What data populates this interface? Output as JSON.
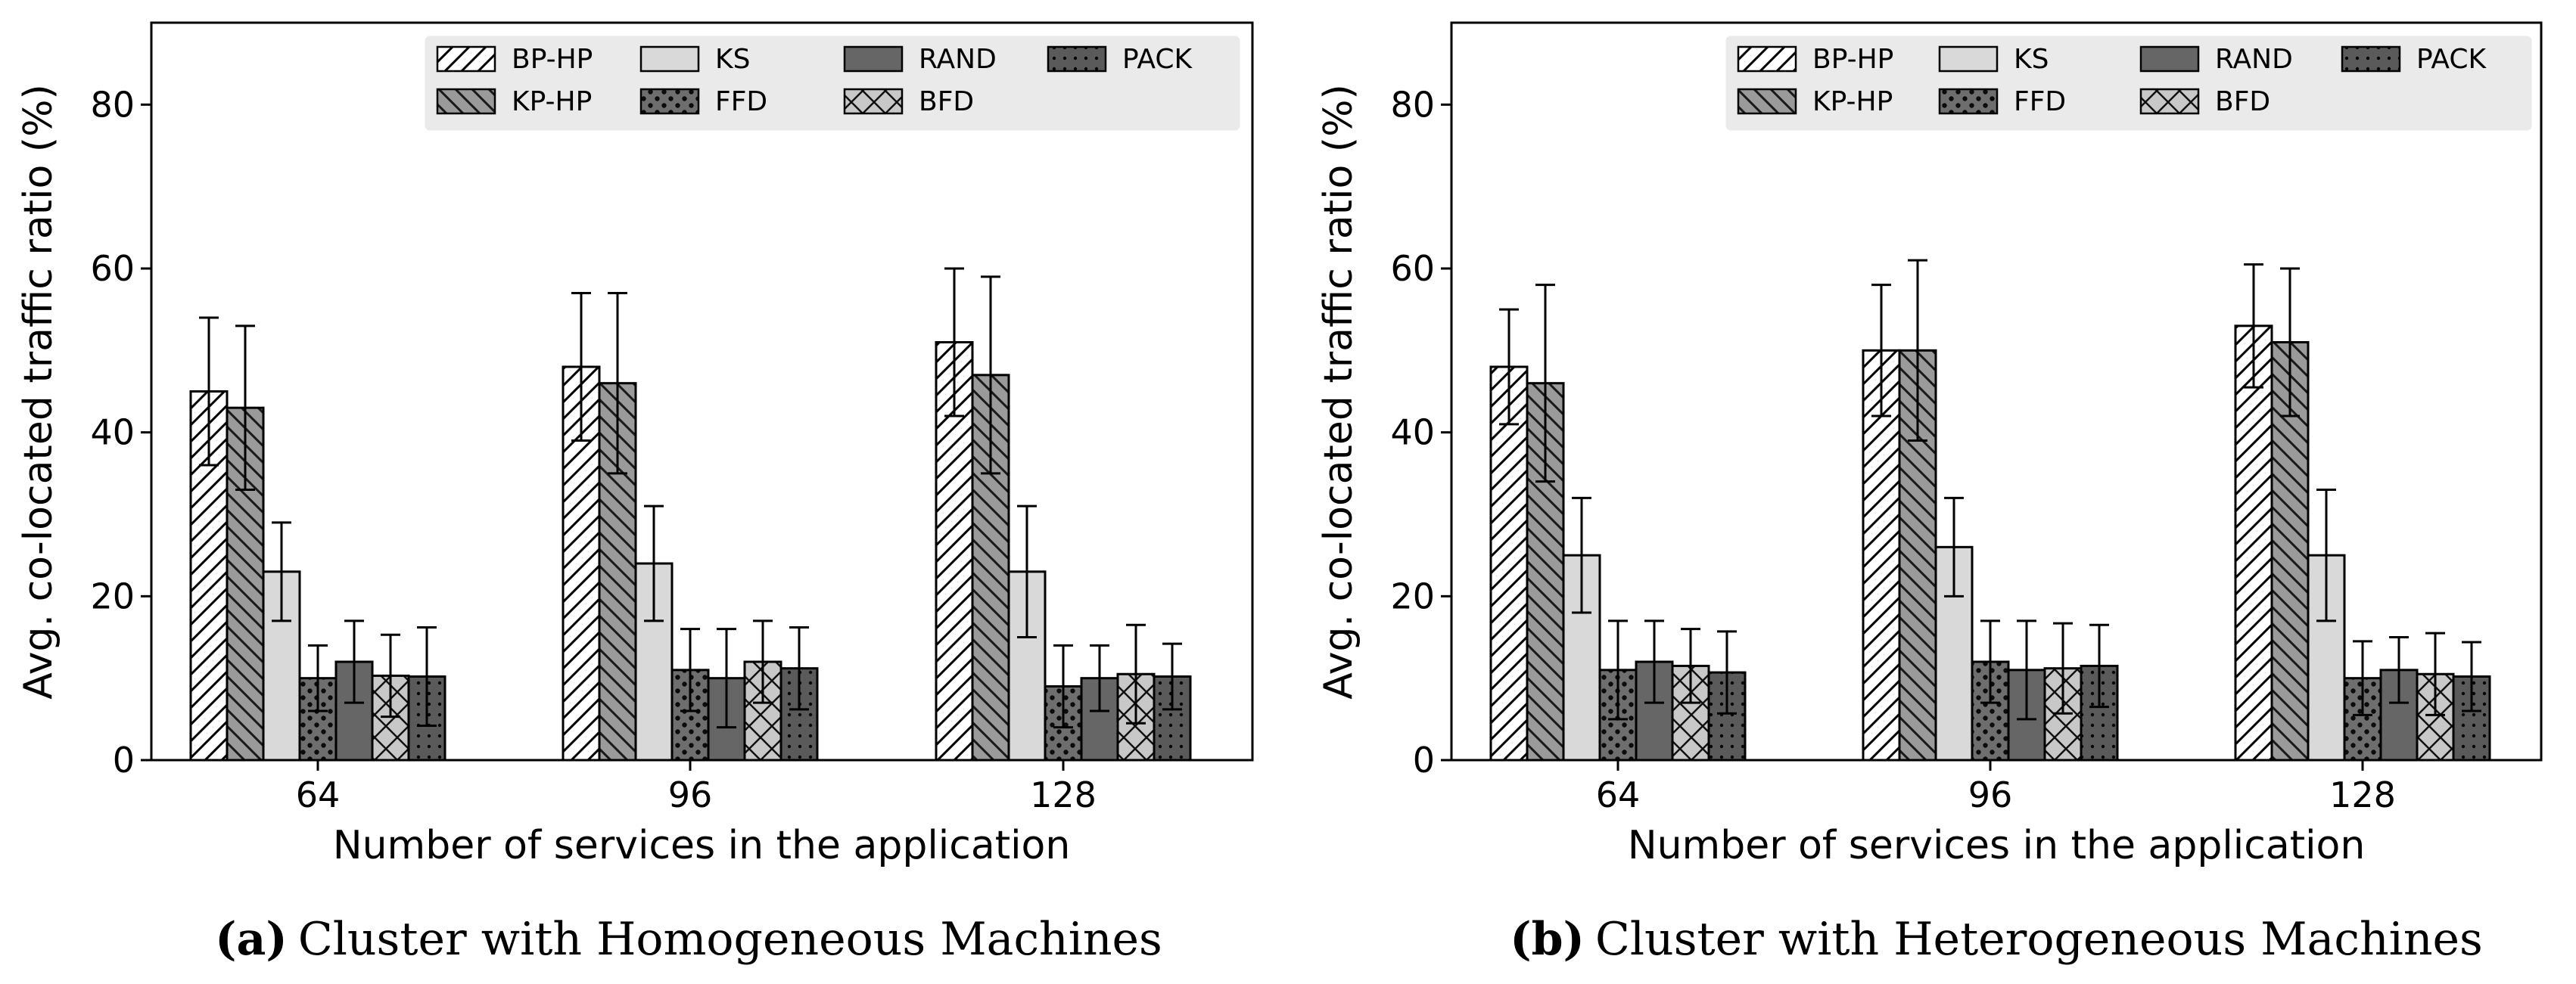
{
  "chart_data": [
    {
      "type": "bar",
      "panel": "a",
      "caption": "Cluster with Homogeneous Machines",
      "categories": [
        "64",
        "96",
        "128"
      ],
      "xlabel": "Number of services in the application",
      "ylabel": "Avg. co-located traffic ratio (%)",
      "ylim": [
        0,
        90
      ],
      "yticks": [
        "0",
        "20",
        "40",
        "60",
        "80"
      ],
      "legend_position": "top-right",
      "series": [
        {
          "name": "BP-HP",
          "values": [
            45,
            48,
            51
          ],
          "err": [
            9,
            9,
            9
          ]
        },
        {
          "name": "KP-HP",
          "values": [
            43,
            46,
            47
          ],
          "err": [
            10,
            11,
            12
          ]
        },
        {
          "name": "KS",
          "values": [
            23,
            24,
            23
          ],
          "err": [
            6,
            7,
            8
          ]
        },
        {
          "name": "FFD",
          "values": [
            10,
            11,
            9
          ],
          "err": [
            4,
            5,
            5
          ]
        },
        {
          "name": "RAND",
          "values": [
            12,
            10,
            10
          ],
          "err": [
            5,
            6,
            4
          ]
        },
        {
          "name": "BFD",
          "values": [
            10.3,
            12,
            10.5
          ],
          "err": [
            5,
            5,
            6
          ]
        },
        {
          "name": "PACK",
          "values": [
            10.2,
            11.2,
            10.2
          ],
          "err": [
            6,
            5,
            4
          ]
        }
      ]
    },
    {
      "type": "bar",
      "panel": "b",
      "caption": "Cluster with Heterogeneous Machines",
      "categories": [
        "64",
        "96",
        "128"
      ],
      "xlabel": "Number of services in the application",
      "ylabel": "Avg. co-located traffic ratio (%)",
      "ylim": [
        0,
        90
      ],
      "yticks": [
        "0",
        "20",
        "40",
        "60",
        "80"
      ],
      "legend_position": "top-right",
      "series": [
        {
          "name": "BP-HP",
          "values": [
            48,
            50,
            53
          ],
          "err": [
            7,
            8,
            7.5
          ]
        },
        {
          "name": "KP-HP",
          "values": [
            46,
            50,
            51
          ],
          "err": [
            12,
            11,
            9
          ]
        },
        {
          "name": "KS",
          "values": [
            25,
            26,
            25
          ],
          "err": [
            7,
            6,
            8
          ]
        },
        {
          "name": "FFD",
          "values": [
            11,
            12,
            10
          ],
          "err": [
            6,
            5,
            4.5
          ]
        },
        {
          "name": "RAND",
          "values": [
            12,
            11,
            11
          ],
          "err": [
            5,
            6,
            4
          ]
        },
        {
          "name": "BFD",
          "values": [
            11.5,
            11.2,
            10.5
          ],
          "err": [
            4.5,
            5.5,
            5
          ]
        },
        {
          "name": "PACK",
          "values": [
            10.7,
            11.5,
            10.2
          ],
          "err": [
            5,
            5,
            4.2
          ]
        }
      ]
    }
  ],
  "captions": [
    {
      "label": "(a)",
      "text": "Cluster with Homogeneous Machines"
    },
    {
      "label": "(b)",
      "text": "Cluster with Heterogeneous Machines"
    }
  ]
}
